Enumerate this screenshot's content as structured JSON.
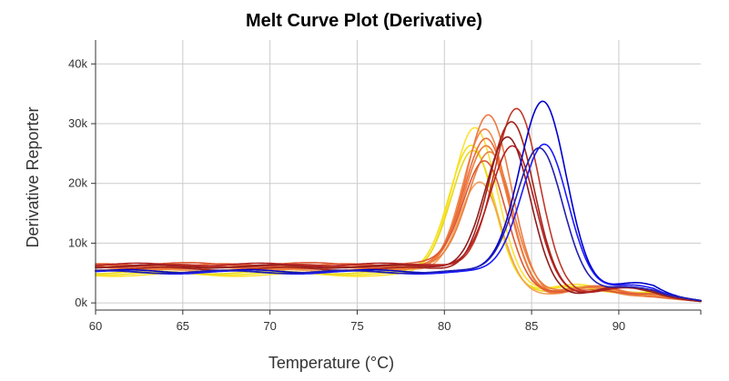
{
  "chart_data": {
    "type": "line",
    "title": "Melt Curve Plot (Derivative)",
    "xlabel": "Temperature (°C)",
    "ylabel": "Derivative Reporter",
    "xlim": [
      60,
      94.7
    ],
    "ylim": [
      -1200,
      44000
    ],
    "x_ticks": [
      60,
      65,
      70,
      75,
      80,
      85,
      90
    ],
    "x_tick_labels": [
      "60",
      "65",
      "70",
      "75",
      "80",
      "85",
      "90"
    ],
    "y_ticks": [
      0,
      10000,
      20000,
      30000,
      40000
    ],
    "y_tick_labels": [
      "0k",
      "10k",
      "20k",
      "30k",
      "40k"
    ],
    "grid": true,
    "legend": "none",
    "series": [
      {
        "color": "#ffe135",
        "peak_x": 81.8,
        "peak_y": 30200,
        "width": 1.3,
        "baseline": 4700,
        "tail": 1600,
        "hump_x": 87.8,
        "hump_y": 3200
      },
      {
        "color": "#f2e21a",
        "peak_x": 81.6,
        "peak_y": 27300,
        "width": 1.3,
        "baseline": 4900,
        "tail": 1500,
        "hump_x": 87.5,
        "hump_y": 2900
      },
      {
        "color": "#e8d81c",
        "peak_x": 81.7,
        "peak_y": 26400,
        "width": 1.3,
        "baseline": 5100,
        "tail": 1400,
        "hump_x": 88.0,
        "hump_y": 3000
      },
      {
        "color": "#f4a15a",
        "peak_x": 82.1,
        "peak_y": 21000,
        "width": 1.2,
        "baseline": 5600,
        "tail": 1300,
        "hump_x": 88.3,
        "hump_y": 2600
      },
      {
        "color": "#f08a4b",
        "peak_x": 82.4,
        "peak_y": 29800,
        "width": 1.3,
        "baseline": 5900,
        "tail": 1200,
        "hump_x": 88.5,
        "hump_y": 2700
      },
      {
        "color": "#ee7a42",
        "peak_x": 82.6,
        "peak_y": 32200,
        "width": 1.3,
        "baseline": 6100,
        "tail": 1300,
        "hump_x": 88.6,
        "hump_y": 2500
      },
      {
        "color": "#e96b3c",
        "peak_x": 82.5,
        "peak_y": 28400,
        "width": 1.3,
        "baseline": 6300,
        "tail": 1200,
        "hump_x": 88.7,
        "hump_y": 2600
      },
      {
        "color": "#f07a3a",
        "peak_x": 82.5,
        "peak_y": 27200,
        "width": 1.3,
        "baseline": 5800,
        "tail": 1300,
        "hump_x": 88.5,
        "hump_y": 2400
      },
      {
        "color": "#e8803f",
        "peak_x": 82.7,
        "peak_y": 26400,
        "width": 1.3,
        "baseline": 6000,
        "tail": 1250,
        "hump_x": 88.4,
        "hump_y": 2500
      },
      {
        "color": "#dc5a35",
        "peak_x": 82.4,
        "peak_y": 25000,
        "width": 1.25,
        "baseline": 6500,
        "tail": 1400,
        "hump_x": 88.8,
        "hump_y": 2300
      },
      {
        "color": "#c0392b",
        "peak_x": 84.2,
        "peak_y": 33400,
        "width": 1.3,
        "baseline": 6200,
        "tail": 1400,
        "hump_x": 90.2,
        "hump_y": 2700
      },
      {
        "color": "#a5231a",
        "peak_x": 83.9,
        "peak_y": 31000,
        "width": 1.3,
        "baseline": 5700,
        "tail": 1500,
        "hump_x": 90.0,
        "hump_y": 2500
      },
      {
        "color": "#8e1c1c",
        "peak_x": 83.7,
        "peak_y": 28500,
        "width": 1.3,
        "baseline": 6100,
        "tail": 1300,
        "hump_x": 89.8,
        "hump_y": 2600
      },
      {
        "color": "#b22222",
        "peak_x": 84.0,
        "peak_y": 27000,
        "width": 1.3,
        "baseline": 6400,
        "tail": 1600,
        "hump_x": 90.4,
        "hump_y": 2400
      },
      {
        "color": "#0000cd",
        "peak_x": 85.7,
        "peak_y": 34700,
        "width": 1.35,
        "baseline": 5300,
        "tail": 1700,
        "hump_x": 91.2,
        "hump_y": 3300
      },
      {
        "color": "#1a1aff",
        "peak_x": 85.8,
        "peak_y": 27500,
        "width": 1.35,
        "baseline": 5100,
        "tail": 1600,
        "hump_x": 91.0,
        "hump_y": 3000
      },
      {
        "color": "#2020b0",
        "peak_x": 85.5,
        "peak_y": 26900,
        "width": 1.35,
        "baseline": 5200,
        "tail": 1500,
        "hump_x": 90.8,
        "hump_y": 2800
      }
    ]
  }
}
